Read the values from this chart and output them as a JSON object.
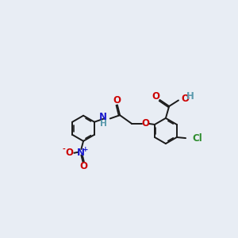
{
  "bg": "#e8edf4",
  "bc": "#1a1a1a",
  "bw": 1.4,
  "dbo": 0.028,
  "fs": 8.5,
  "colors": {
    "O": "#cc0000",
    "N": "#1a1acc",
    "H": "#5a9aad",
    "Cl": "#2d8c2d"
  },
  "ring_r": 0.3,
  "xlim": [
    0.0,
    5.5
  ],
  "ylim": [
    0.5,
    3.5
  ]
}
